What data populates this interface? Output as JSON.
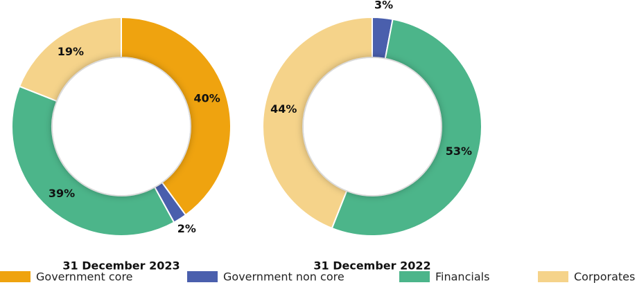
{
  "chart_data": [
    {
      "type": "pie",
      "title": "31 December 2023",
      "categories": [
        "Government core",
        "Government non core",
        "Financials",
        "Corporates"
      ],
      "values": [
        40,
        2,
        39,
        19
      ],
      "value_labels": [
        "40%",
        "2%",
        "39%",
        "19%"
      ],
      "colors": [
        "#efa30f",
        "#4a5fad",
        "#4cb58a",
        "#f5d38a"
      ]
    },
    {
      "type": "pie",
      "title": "31 December 2022",
      "categories": [
        "Government non core",
        "Financials",
        "Corporates"
      ],
      "values": [
        3,
        53,
        44
      ],
      "value_labels": [
        "3%",
        "53%",
        "44%"
      ],
      "colors": [
        "#4a5fad",
        "#4cb58a",
        "#f5d38a"
      ]
    }
  ]
}
